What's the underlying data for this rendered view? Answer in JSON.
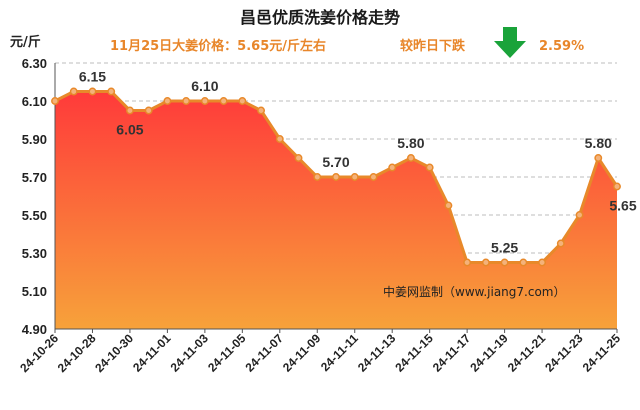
{
  "title": "昌邑优质洗姜价格走势",
  "price_note": "11月25日大姜价格：5.65元/斤左右",
  "change_label": "较昨日下跌",
  "change_value": "2.59%",
  "change_icon": "down-arrow-icon",
  "unit_label": "元/斤",
  "watermark": "中姜网监制（www.jiang7.com）",
  "colors": {
    "line": "#e8892a",
    "fill_top": "#ff3a3a",
    "fill_bottom": "#f7a23a",
    "arrow": "#1aa33a",
    "accent_text": "#e8862a"
  },
  "chart_data": {
    "type": "area",
    "title": "昌邑优质洗姜价格走势",
    "ylabel": "元/斤",
    "ylim": [
      4.9,
      6.3
    ],
    "yticks": [
      "6.30",
      "6.10",
      "5.90",
      "5.70",
      "5.50",
      "5.30",
      "5.10",
      "4.90"
    ],
    "grid": true,
    "x": [
      "24-10-26",
      "24-10-27",
      "24-10-28",
      "24-10-29",
      "24-10-30",
      "24-10-31",
      "24-11-01",
      "24-11-02",
      "24-11-03",
      "24-11-04",
      "24-11-05",
      "24-11-06",
      "24-11-07",
      "24-11-08",
      "24-11-09",
      "24-11-10",
      "24-11-11",
      "24-11-12",
      "24-11-13",
      "24-11-14",
      "24-11-15",
      "24-11-16",
      "24-11-17",
      "24-11-18",
      "24-11-19",
      "24-11-20",
      "24-11-21",
      "24-11-22",
      "24-11-23",
      "24-11-24",
      "24-11-25"
    ],
    "xtick_labels": [
      "24-10-26",
      "24-10-28",
      "24-10-30",
      "24-11-01",
      "24-11-03",
      "24-11-05",
      "24-11-07",
      "24-11-09",
      "24-11-11",
      "24-11-13",
      "24-11-15",
      "24-11-17",
      "24-11-19",
      "24-11-21",
      "24-11-23",
      "24-11-25"
    ],
    "values": [
      6.1,
      6.15,
      6.15,
      6.15,
      6.05,
      6.05,
      6.1,
      6.1,
      6.1,
      6.1,
      6.1,
      6.05,
      5.9,
      5.8,
      5.7,
      5.7,
      5.7,
      5.7,
      5.75,
      5.8,
      5.75,
      5.55,
      5.25,
      5.25,
      5.25,
      5.25,
      5.25,
      5.35,
      5.5,
      5.8,
      5.65
    ],
    "data_labels": [
      {
        "x": "24-10-28",
        "text": "6.15"
      },
      {
        "x": "24-10-30",
        "text": "6.05"
      },
      {
        "x": "24-11-03",
        "text": "6.10"
      },
      {
        "x": "24-11-10",
        "text": "5.70"
      },
      {
        "x": "24-11-14",
        "text": "5.80"
      },
      {
        "x": "24-11-19",
        "text": "5.25"
      },
      {
        "x": "24-11-24",
        "text": "5.80"
      },
      {
        "x": "24-11-25",
        "text": "5.65"
      }
    ]
  }
}
